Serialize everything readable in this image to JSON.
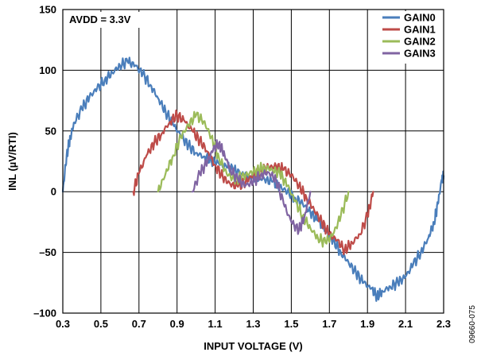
{
  "chart_data": {
    "type": "line",
    "title": "",
    "xlabel": "INPUT VOLTAGE (V)",
    "ylabel": "INL (µV/RTI)",
    "xlim": [
      0.3,
      2.3
    ],
    "ylim": [
      -100,
      150
    ],
    "xticks": [
      0.3,
      0.5,
      0.7,
      0.9,
      1.1,
      1.3,
      1.5,
      1.7,
      1.9,
      2.1,
      2.3
    ],
    "yticks": [
      -100,
      -50,
      0,
      50,
      100,
      150
    ],
    "xtick_labels": [
      "0.3",
      "0.5",
      "0.7",
      "0.9",
      "1.1",
      "1.3",
      "1.5",
      "1.7",
      "1.9",
      "2.1",
      "2.3"
    ],
    "ytick_labels": [
      "–100",
      "–50",
      "0",
      "50",
      "100",
      "150"
    ],
    "grid": true,
    "legend_position": "top-right",
    "annotation": "AVDD = 3.3V",
    "figure_id": "09660-075",
    "series": [
      {
        "name": "GAIN0",
        "color": "#4a7ebb",
        "points": [
          [
            0.3,
            0
          ],
          [
            0.32,
            30
          ],
          [
            0.34,
            45
          ],
          [
            0.36,
            57
          ],
          [
            0.4,
            68
          ],
          [
            0.44,
            78
          ],
          [
            0.48,
            85
          ],
          [
            0.52,
            92
          ],
          [
            0.56,
            98
          ],
          [
            0.6,
            104
          ],
          [
            0.64,
            107
          ],
          [
            0.68,
            104
          ],
          [
            0.72,
            97
          ],
          [
            0.76,
            88
          ],
          [
            0.8,
            77
          ],
          [
            0.84,
            66
          ],
          [
            0.88,
            55
          ],
          [
            0.92,
            46
          ],
          [
            0.96,
            38
          ],
          [
            1.0,
            32
          ],
          [
            1.04,
            29
          ],
          [
            1.08,
            26
          ],
          [
            1.12,
            23
          ],
          [
            1.16,
            20
          ],
          [
            1.2,
            18
          ],
          [
            1.24,
            15
          ],
          [
            1.28,
            13
          ],
          [
            1.32,
            12
          ],
          [
            1.36,
            10
          ],
          [
            1.4,
            8
          ],
          [
            1.44,
            4
          ],
          [
            1.48,
            0
          ],
          [
            1.52,
            -5
          ],
          [
            1.56,
            -10
          ],
          [
            1.6,
            -17
          ],
          [
            1.64,
            -24
          ],
          [
            1.68,
            -32
          ],
          [
            1.72,
            -40
          ],
          [
            1.76,
            -50
          ],
          [
            1.8,
            -58
          ],
          [
            1.84,
            -67
          ],
          [
            1.88,
            -75
          ],
          [
            1.92,
            -80
          ],
          [
            1.95,
            -86
          ],
          [
            1.98,
            -82
          ],
          [
            2.02,
            -78
          ],
          [
            2.06,
            -75
          ],
          [
            2.1,
            -70
          ],
          [
            2.14,
            -60
          ],
          [
            2.18,
            -50
          ],
          [
            2.22,
            -38
          ],
          [
            2.25,
            -25
          ],
          [
            2.27,
            -10
          ],
          [
            2.29,
            10
          ],
          [
            2.3,
            13
          ]
        ]
      },
      {
        "name": "GAIN1",
        "color": "#be4b48",
        "points": [
          [
            0.67,
            0
          ],
          [
            0.7,
            15
          ],
          [
            0.74,
            30
          ],
          [
            0.78,
            40
          ],
          [
            0.82,
            48
          ],
          [
            0.86,
            57
          ],
          [
            0.9,
            63
          ],
          [
            0.94,
            58
          ],
          [
            0.98,
            50
          ],
          [
            1.02,
            42
          ],
          [
            1.06,
            33
          ],
          [
            1.1,
            22
          ],
          [
            1.14,
            12
          ],
          [
            1.18,
            6
          ],
          [
            1.22,
            4
          ],
          [
            1.26,
            8
          ],
          [
            1.3,
            14
          ],
          [
            1.34,
            18
          ],
          [
            1.38,
            20
          ],
          [
            1.42,
            21
          ],
          [
            1.46,
            18
          ],
          [
            1.5,
            14
          ],
          [
            1.54,
            5
          ],
          [
            1.58,
            -5
          ],
          [
            1.62,
            -15
          ],
          [
            1.66,
            -25
          ],
          [
            1.7,
            -35
          ],
          [
            1.74,
            -40
          ],
          [
            1.78,
            -48
          ],
          [
            1.82,
            -42
          ],
          [
            1.86,
            -35
          ],
          [
            1.9,
            -20
          ],
          [
            1.93,
            0
          ]
        ]
      },
      {
        "name": "GAIN2",
        "color": "#9bbb59",
        "points": [
          [
            0.8,
            0
          ],
          [
            0.84,
            15
          ],
          [
            0.88,
            30
          ],
          [
            0.92,
            45
          ],
          [
            0.96,
            55
          ],
          [
            1.0,
            63
          ],
          [
            1.04,
            58
          ],
          [
            1.08,
            45
          ],
          [
            1.12,
            28
          ],
          [
            1.16,
            15
          ],
          [
            1.2,
            10
          ],
          [
            1.24,
            12
          ],
          [
            1.28,
            15
          ],
          [
            1.32,
            18
          ],
          [
            1.36,
            20
          ],
          [
            1.4,
            18
          ],
          [
            1.44,
            15
          ],
          [
            1.48,
            5
          ],
          [
            1.52,
            -8
          ],
          [
            1.56,
            -20
          ],
          [
            1.6,
            -30
          ],
          [
            1.64,
            -38
          ],
          [
            1.68,
            -42
          ],
          [
            1.72,
            -35
          ],
          [
            1.76,
            -20
          ],
          [
            1.8,
            0
          ]
        ]
      },
      {
        "name": "GAIN3",
        "color": "#8064a2",
        "points": [
          [
            0.98,
            0
          ],
          [
            1.02,
            15
          ],
          [
            1.06,
            25
          ],
          [
            1.09,
            35
          ],
          [
            1.12,
            40
          ],
          [
            1.15,
            30
          ],
          [
            1.18,
            18
          ],
          [
            1.22,
            10
          ],
          [
            1.26,
            5
          ],
          [
            1.3,
            8
          ],
          [
            1.34,
            14
          ],
          [
            1.38,
            16
          ],
          [
            1.42,
            10
          ],
          [
            1.46,
            -10
          ],
          [
            1.5,
            -25
          ],
          [
            1.54,
            -32
          ],
          [
            1.57,
            -20
          ],
          [
            1.6,
            0
          ]
        ]
      }
    ]
  }
}
